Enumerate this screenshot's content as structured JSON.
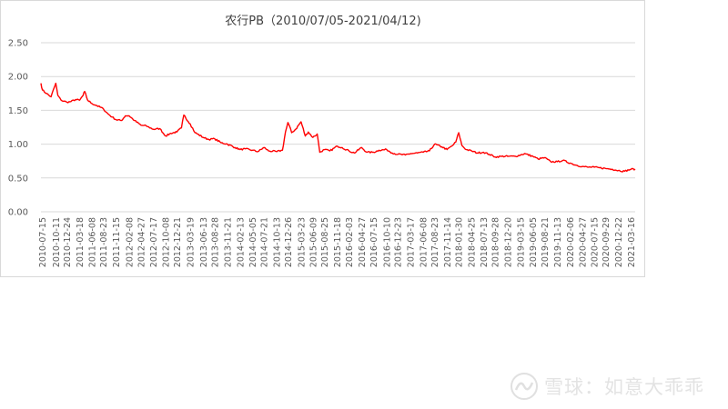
{
  "chart_data": {
    "type": "line",
    "title": "农行PB（2010/07/05-2021/04/12)",
    "ylim": [
      0,
      2.5
    ],
    "yticks": [
      "0.00",
      "0.50",
      "1.00",
      "1.50",
      "2.00",
      "2.50"
    ],
    "grid": "horizontal",
    "legend": "none",
    "series_color": "#ff0000",
    "x_tick_labels": [
      "2010-07-15",
      "2010-10-11",
      "2010-12-24",
      "2011-03-18",
      "2011-06-08",
      "2011-08-23",
      "2011-11-15",
      "2012-02-08",
      "2012-04-27",
      "2012-07-17",
      "2012-10-08",
      "2012-12-21",
      "2013-03-19",
      "2013-06-13",
      "2013-08-28",
      "2013-11-21",
      "2014-02-13",
      "2014-05-05",
      "2014-07-21",
      "2014-10-13",
      "2014-12-26",
      "2015-03-23",
      "2015-06-09",
      "2015-08-25",
      "2015-11-18",
      "2016-02-03",
      "2016-04-27",
      "2016-07-15",
      "2016-10-10",
      "2016-12-23",
      "2017-03-17",
      "2017-06-08",
      "2017-08-23",
      "2017-11-14",
      "2018-01-30",
      "2018-04-25",
      "2018-07-13",
      "2018-09-28",
      "2018-12-20",
      "2019-03-15",
      "2019-06-05",
      "2019-08-21",
      "2019-11-13",
      "2020-02-06",
      "2020-04-27",
      "2020-07-15",
      "2020-09-29",
      "2020-12-22",
      "2021-03-16"
    ],
    "series": [
      {
        "x": [
          "2010-07-05",
          "2010-07-15",
          "2010-08-10",
          "2010-09-10",
          "2010-10-11",
          "2010-10-25",
          "2010-11-15",
          "2010-12-24",
          "2011-01-20",
          "2011-02-20",
          "2011-03-18",
          "2011-04-10",
          "2011-04-20",
          "2011-05-10",
          "2011-06-08",
          "2011-07-10",
          "2011-08-23",
          "2011-09-20",
          "2011-10-20",
          "2011-11-15",
          "2011-12-20",
          "2012-01-15",
          "2012-02-08",
          "2012-03-15",
          "2012-04-27",
          "2012-06-01",
          "2012-07-17",
          "2012-08-30",
          "2012-10-08",
          "2012-11-10",
          "2012-12-21",
          "2013-01-20",
          "2013-02-05",
          "2013-03-19",
          "2013-04-20",
          "2013-06-13",
          "2013-07-20",
          "2013-08-28",
          "2013-10-10",
          "2013-11-21",
          "2014-01-10",
          "2014-02-13",
          "2014-03-20",
          "2014-05-05",
          "2014-06-10",
          "2014-07-21",
          "2014-08-20",
          "2014-10-13",
          "2014-11-20",
          "2014-12-10",
          "2014-12-26",
          "2015-01-20",
          "2015-02-15",
          "2015-03-23",
          "2015-04-20",
          "2015-05-10",
          "2015-06-09",
          "2015-07-08",
          "2015-07-25",
          "2015-08-25",
          "2015-09-30",
          "2015-11-18",
          "2015-12-20",
          "2016-02-03",
          "2016-03-10",
          "2016-04-27",
          "2016-06-01",
          "2016-07-15",
          "2016-08-20",
          "2016-10-10",
          "2016-11-15",
          "2016-12-23",
          "2017-02-10",
          "2017-03-17",
          "2017-05-01",
          "2017-06-08",
          "2017-07-20",
          "2017-08-23",
          "2017-10-10",
          "2017-11-14",
          "2017-12-20",
          "2018-01-10",
          "2018-01-30",
          "2018-02-20",
          "2018-03-20",
          "2018-04-25",
          "2018-06-01",
          "2018-07-13",
          "2018-08-20",
          "2018-09-28",
          "2018-11-10",
          "2018-12-20",
          "2019-02-10",
          "2019-03-15",
          "2019-04-10",
          "2019-06-05",
          "2019-07-10",
          "2019-08-21",
          "2019-10-01",
          "2019-11-13",
          "2019-12-20",
          "2020-02-06",
          "2020-03-15",
          "2020-04-27",
          "2020-06-01",
          "2020-07-15",
          "2020-08-20",
          "2020-09-29",
          "2020-11-10",
          "2020-12-22",
          "2021-02-01",
          "2021-03-16",
          "2021-04-12"
        ],
        "values": [
          1.9,
          1.8,
          1.75,
          1.7,
          1.9,
          1.72,
          1.65,
          1.62,
          1.63,
          1.66,
          1.65,
          1.72,
          1.78,
          1.65,
          1.6,
          1.57,
          1.52,
          1.45,
          1.4,
          1.36,
          1.35,
          1.42,
          1.42,
          1.35,
          1.28,
          1.27,
          1.22,
          1.23,
          1.12,
          1.16,
          1.18,
          1.24,
          1.43,
          1.3,
          1.17,
          1.1,
          1.07,
          1.08,
          1.02,
          1.0,
          0.95,
          0.92,
          0.93,
          0.91,
          0.89,
          0.95,
          0.9,
          0.89,
          0.91,
          1.18,
          1.32,
          1.17,
          1.22,
          1.33,
          1.12,
          1.18,
          1.1,
          1.15,
          0.88,
          0.92,
          0.9,
          0.97,
          0.95,
          0.9,
          0.87,
          0.95,
          0.88,
          0.88,
          0.91,
          0.92,
          0.87,
          0.85,
          0.84,
          0.86,
          0.87,
          0.88,
          0.9,
          1.0,
          0.96,
          0.92,
          0.98,
          1.03,
          1.17,
          0.98,
          0.92,
          0.9,
          0.87,
          0.88,
          0.85,
          0.81,
          0.82,
          0.82,
          0.82,
          0.84,
          0.86,
          0.82,
          0.78,
          0.8,
          0.74,
          0.74,
          0.76,
          0.72,
          0.69,
          0.67,
          0.66,
          0.66,
          0.65,
          0.64,
          0.63,
          0.61,
          0.6,
          0.63,
          0.63
        ]
      }
    ]
  },
  "watermark": {
    "logo_glyph": "∿",
    "text": "雪球：如意大乖乖"
  }
}
